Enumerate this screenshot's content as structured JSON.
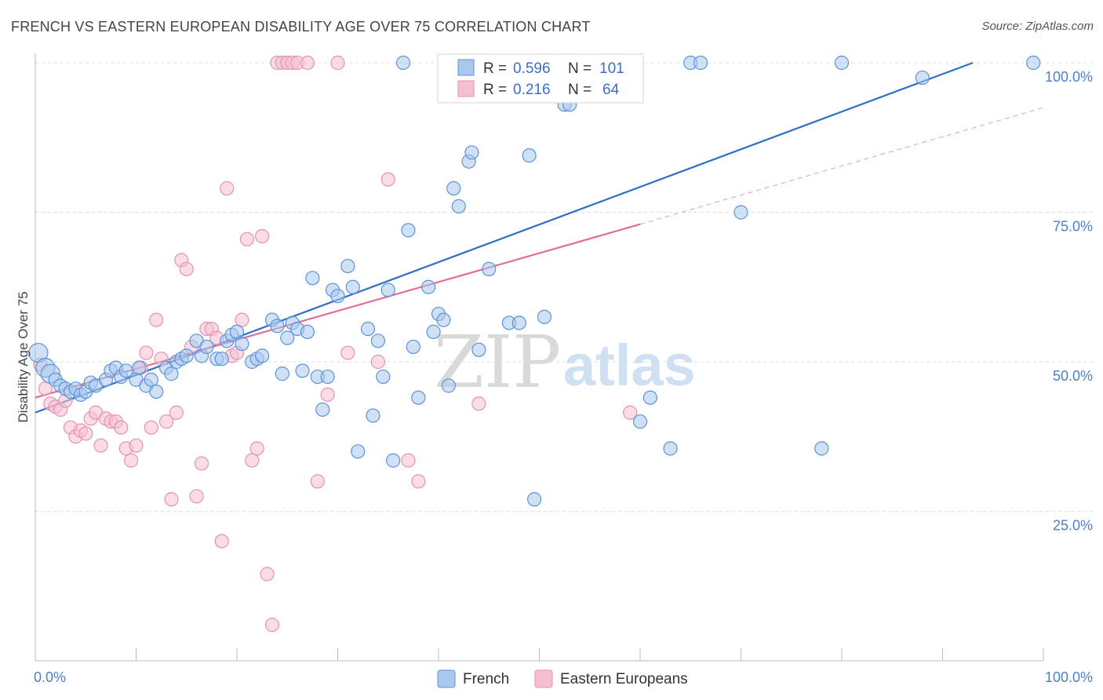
{
  "title": "FRENCH VS EASTERN EUROPEAN DISABILITY AGE OVER 75 CORRELATION CHART",
  "source": "Source: ZipAtlas.com",
  "watermark": {
    "zip": "ZIP",
    "atlas": "atlas"
  },
  "colors": {
    "french": "#5b93d8",
    "french_fill": "#a9c8ee",
    "french_line": "#2f6fc7",
    "eastern": "#e592b0",
    "eastern_fill": "#f6bfd1",
    "eastern_line": "#e06e96",
    "grid": "#dddddd",
    "tick": "#4a7fcb"
  },
  "legend_top": {
    "r_label": "R =",
    "n_label": "N =",
    "rows": [
      {
        "series": "French",
        "r": "0.596",
        "n": "101"
      },
      {
        "series": "Eastern Europeans",
        "r": "0.216",
        "n": "64"
      }
    ]
  },
  "legend_bottom": [
    "French",
    "Eastern Europeans"
  ],
  "chart_data": {
    "type": "scatter",
    "title": "FRENCH VS EASTERN EUROPEAN DISABILITY AGE OVER 75 CORRELATION CHART",
    "xlabel": "",
    "ylabel": "Disability Age Over 75",
    "xlim": [
      0,
      100
    ],
    "ylim": [
      0,
      100
    ],
    "x_tick_labels": [
      "0.0%",
      "100.0%"
    ],
    "y_ticks": [
      25,
      50,
      75,
      100
    ],
    "y_tick_labels": [
      "25.0%",
      "50.0%",
      "75.0%",
      "100.0%"
    ],
    "grid": "horizontal dashed",
    "legend": "top-center",
    "series": [
      {
        "name": "French",
        "r": 0.596,
        "n": 101,
        "trend": {
          "x0": 0,
          "y0": 41.5,
          "x1": 93,
          "y1": 100
        },
        "points": [
          [
            0.3,
            51.5
          ],
          [
            1,
            49
          ],
          [
            1.5,
            48
          ],
          [
            2,
            47
          ],
          [
            2.5,
            46
          ],
          [
            3,
            45.5
          ],
          [
            3.5,
            45
          ],
          [
            4,
            45.5
          ],
          [
            4.5,
            44.5
          ],
          [
            5,
            45
          ],
          [
            5.5,
            46.5
          ],
          [
            6,
            46
          ],
          [
            7,
            47
          ],
          [
            7.5,
            48.5
          ],
          [
            8,
            49
          ],
          [
            8.5,
            47.5
          ],
          [
            9,
            48.5
          ],
          [
            10,
            47
          ],
          [
            10.3,
            49
          ],
          [
            11,
            46
          ],
          [
            11.5,
            47
          ],
          [
            12,
            45
          ],
          [
            13,
            49
          ],
          [
            13.5,
            48
          ],
          [
            14,
            50
          ],
          [
            14.5,
            50.5
          ],
          [
            15,
            51
          ],
          [
            16,
            53.5
          ],
          [
            16.5,
            51
          ],
          [
            17,
            52.5
          ],
          [
            18,
            50.5
          ],
          [
            18.5,
            50.5
          ],
          [
            19,
            53.5
          ],
          [
            19.5,
            54.5
          ],
          [
            20,
            55
          ],
          [
            20.5,
            53
          ],
          [
            21.5,
            50
          ],
          [
            22,
            50.5
          ],
          [
            22.5,
            51
          ],
          [
            23.5,
            57
          ],
          [
            24,
            56
          ],
          [
            24.5,
            48
          ],
          [
            25,
            54
          ],
          [
            25.5,
            56.5
          ],
          [
            26,
            55.5
          ],
          [
            26.5,
            48.5
          ],
          [
            27,
            55
          ],
          [
            27.5,
            64
          ],
          [
            28,
            47.5
          ],
          [
            28.5,
            42
          ],
          [
            29,
            47.5
          ],
          [
            29.5,
            62
          ],
          [
            30,
            61
          ],
          [
            31,
            66
          ],
          [
            31.5,
            62.5
          ],
          [
            32,
            35
          ],
          [
            33,
            55.5
          ],
          [
            33.5,
            41
          ],
          [
            34,
            53.5
          ],
          [
            34.5,
            47.5
          ],
          [
            35,
            62
          ],
          [
            35.5,
            33.5
          ],
          [
            36.5,
            100
          ],
          [
            37,
            72
          ],
          [
            37.5,
            52.5
          ],
          [
            38,
            44
          ],
          [
            39,
            62.5
          ],
          [
            39.5,
            55
          ],
          [
            40,
            58
          ],
          [
            40.5,
            57
          ],
          [
            41,
            46
          ],
          [
            41.5,
            79
          ],
          [
            42,
            76
          ],
          [
            43,
            83.5
          ],
          [
            43.3,
            85
          ],
          [
            44,
            52
          ],
          [
            45,
            65.5
          ],
          [
            46,
            100
          ],
          [
            47,
            56.5
          ],
          [
            48,
            56.5
          ],
          [
            49,
            84.5
          ],
          [
            49.5,
            27
          ],
          [
            50.5,
            57.5
          ],
          [
            51,
            100
          ],
          [
            52,
            100
          ],
          [
            52.5,
            93
          ],
          [
            53,
            93
          ],
          [
            54,
            100
          ],
          [
            55,
            100
          ],
          [
            56,
            100
          ],
          [
            57,
            95.5
          ],
          [
            60,
            40
          ],
          [
            61,
            44
          ],
          [
            63,
            35.5
          ],
          [
            65,
            100
          ],
          [
            66,
            100
          ],
          [
            70,
            75
          ],
          [
            78,
            35.5
          ],
          [
            80,
            100
          ],
          [
            88,
            97.5
          ],
          [
            99,
            100
          ]
        ]
      },
      {
        "name": "Eastern Europeans",
        "r": 0.216,
        "n": 64,
        "trend": {
          "x0": 0,
          "y0": 44,
          "x1": 60,
          "y1": 73
        },
        "trend_dashed": {
          "x0": 60,
          "y0": 73,
          "x1": 100,
          "y1": 92.5
        },
        "points": [
          [
            0.5,
            49.5
          ],
          [
            1,
            45.5
          ],
          [
            1.5,
            43
          ],
          [
            2,
            42.5
          ],
          [
            2.5,
            42
          ],
          [
            3,
            43.5
          ],
          [
            3.5,
            39
          ],
          [
            4,
            37.5
          ],
          [
            4.5,
            38.5
          ],
          [
            5,
            38
          ],
          [
            5.5,
            40.5
          ],
          [
            6,
            41.5
          ],
          [
            6.5,
            36
          ],
          [
            7,
            40.5
          ],
          [
            7.5,
            40
          ],
          [
            8,
            40
          ],
          [
            8.5,
            39
          ],
          [
            9,
            35.5
          ],
          [
            9.5,
            33.5
          ],
          [
            10,
            36
          ],
          [
            10.5,
            49
          ],
          [
            11,
            51.5
          ],
          [
            11.5,
            39
          ],
          [
            12,
            57
          ],
          [
            12.5,
            50.5
          ],
          [
            13,
            40
          ],
          [
            13.5,
            27
          ],
          [
            14,
            41.5
          ],
          [
            14.5,
            67
          ],
          [
            15,
            65.5
          ],
          [
            15.5,
            52.5
          ],
          [
            16,
            27.5
          ],
          [
            16.5,
            33
          ],
          [
            17,
            55.5
          ],
          [
            17.5,
            55.5
          ],
          [
            18,
            54
          ],
          [
            18.5,
            20
          ],
          [
            19,
            79
          ],
          [
            19.5,
            51
          ],
          [
            20,
            51.5
          ],
          [
            20.5,
            57
          ],
          [
            21,
            70.5
          ],
          [
            21.5,
            33.5
          ],
          [
            22,
            35.5
          ],
          [
            22.5,
            71
          ],
          [
            23,
            14.5
          ],
          [
            23.5,
            6
          ],
          [
            24,
            100
          ],
          [
            24.5,
            100
          ],
          [
            25,
            100
          ],
          [
            25.5,
            100
          ],
          [
            26,
            100
          ],
          [
            27,
            100
          ],
          [
            28,
            30
          ],
          [
            29,
            44.5
          ],
          [
            30,
            100
          ],
          [
            31,
            51.5
          ],
          [
            34,
            50
          ],
          [
            35,
            80.5
          ],
          [
            37,
            33.5
          ],
          [
            38,
            30
          ],
          [
            41,
            100
          ],
          [
            44,
            43
          ],
          [
            59,
            41.5
          ]
        ]
      }
    ]
  }
}
